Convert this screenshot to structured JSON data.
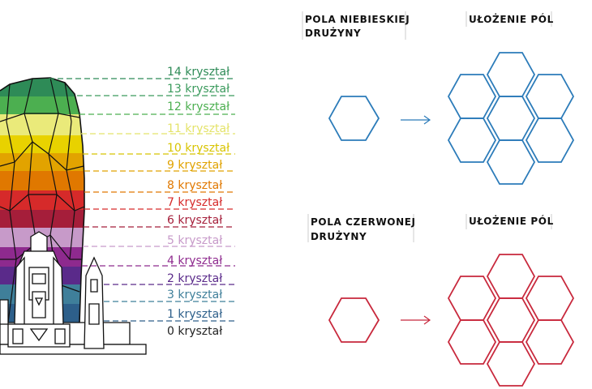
{
  "diagram": {
    "crystal_levels": [
      {
        "label": "14 kryształ",
        "color": "#2e8b57"
      },
      {
        "label": "13 kryształ",
        "color": "#3a9a5c"
      },
      {
        "label": "12 kryształ",
        "color": "#4caf50"
      },
      {
        "label": "11 kryształ",
        "color": "#eaea7a"
      },
      {
        "label": "10 kryształ",
        "color": "#d8c400"
      },
      {
        "label": "9 kryształ",
        "color": "#e0a200"
      },
      {
        "label": "8 kryształ",
        "color": "#e07800"
      },
      {
        "label": "7 kryształ",
        "color": "#d62a2a"
      },
      {
        "label": "6 kryształ",
        "color": "#a51e3a"
      },
      {
        "label": "5 kryształ",
        "color": "#c79ac9"
      },
      {
        "label": "4 kryształ",
        "color": "#8e2a8e"
      },
      {
        "label": "2 kryształ",
        "color": "#5a2a8a"
      },
      {
        "label": "3 kryształ",
        "color": "#3f7f9a"
      },
      {
        "label": "1 kryształ",
        "color": "#2d5f8a"
      },
      {
        "label": "0 kryształ",
        "color": "#222222"
      }
    ],
    "panels": {
      "blue": {
        "title_lines": [
          "POLA NIEBIESKIEJ",
          "DRUŻYNY"
        ],
        "layout_title": "UŁOŻENIE PÓL",
        "color": "#2b7bb9"
      },
      "red": {
        "title_lines": [
          "POLA CZERWONEJ",
          "DRUŻYNY"
        ],
        "layout_title": "UŁOŻENIE PÓL",
        "color": "#c8283c"
      }
    }
  }
}
